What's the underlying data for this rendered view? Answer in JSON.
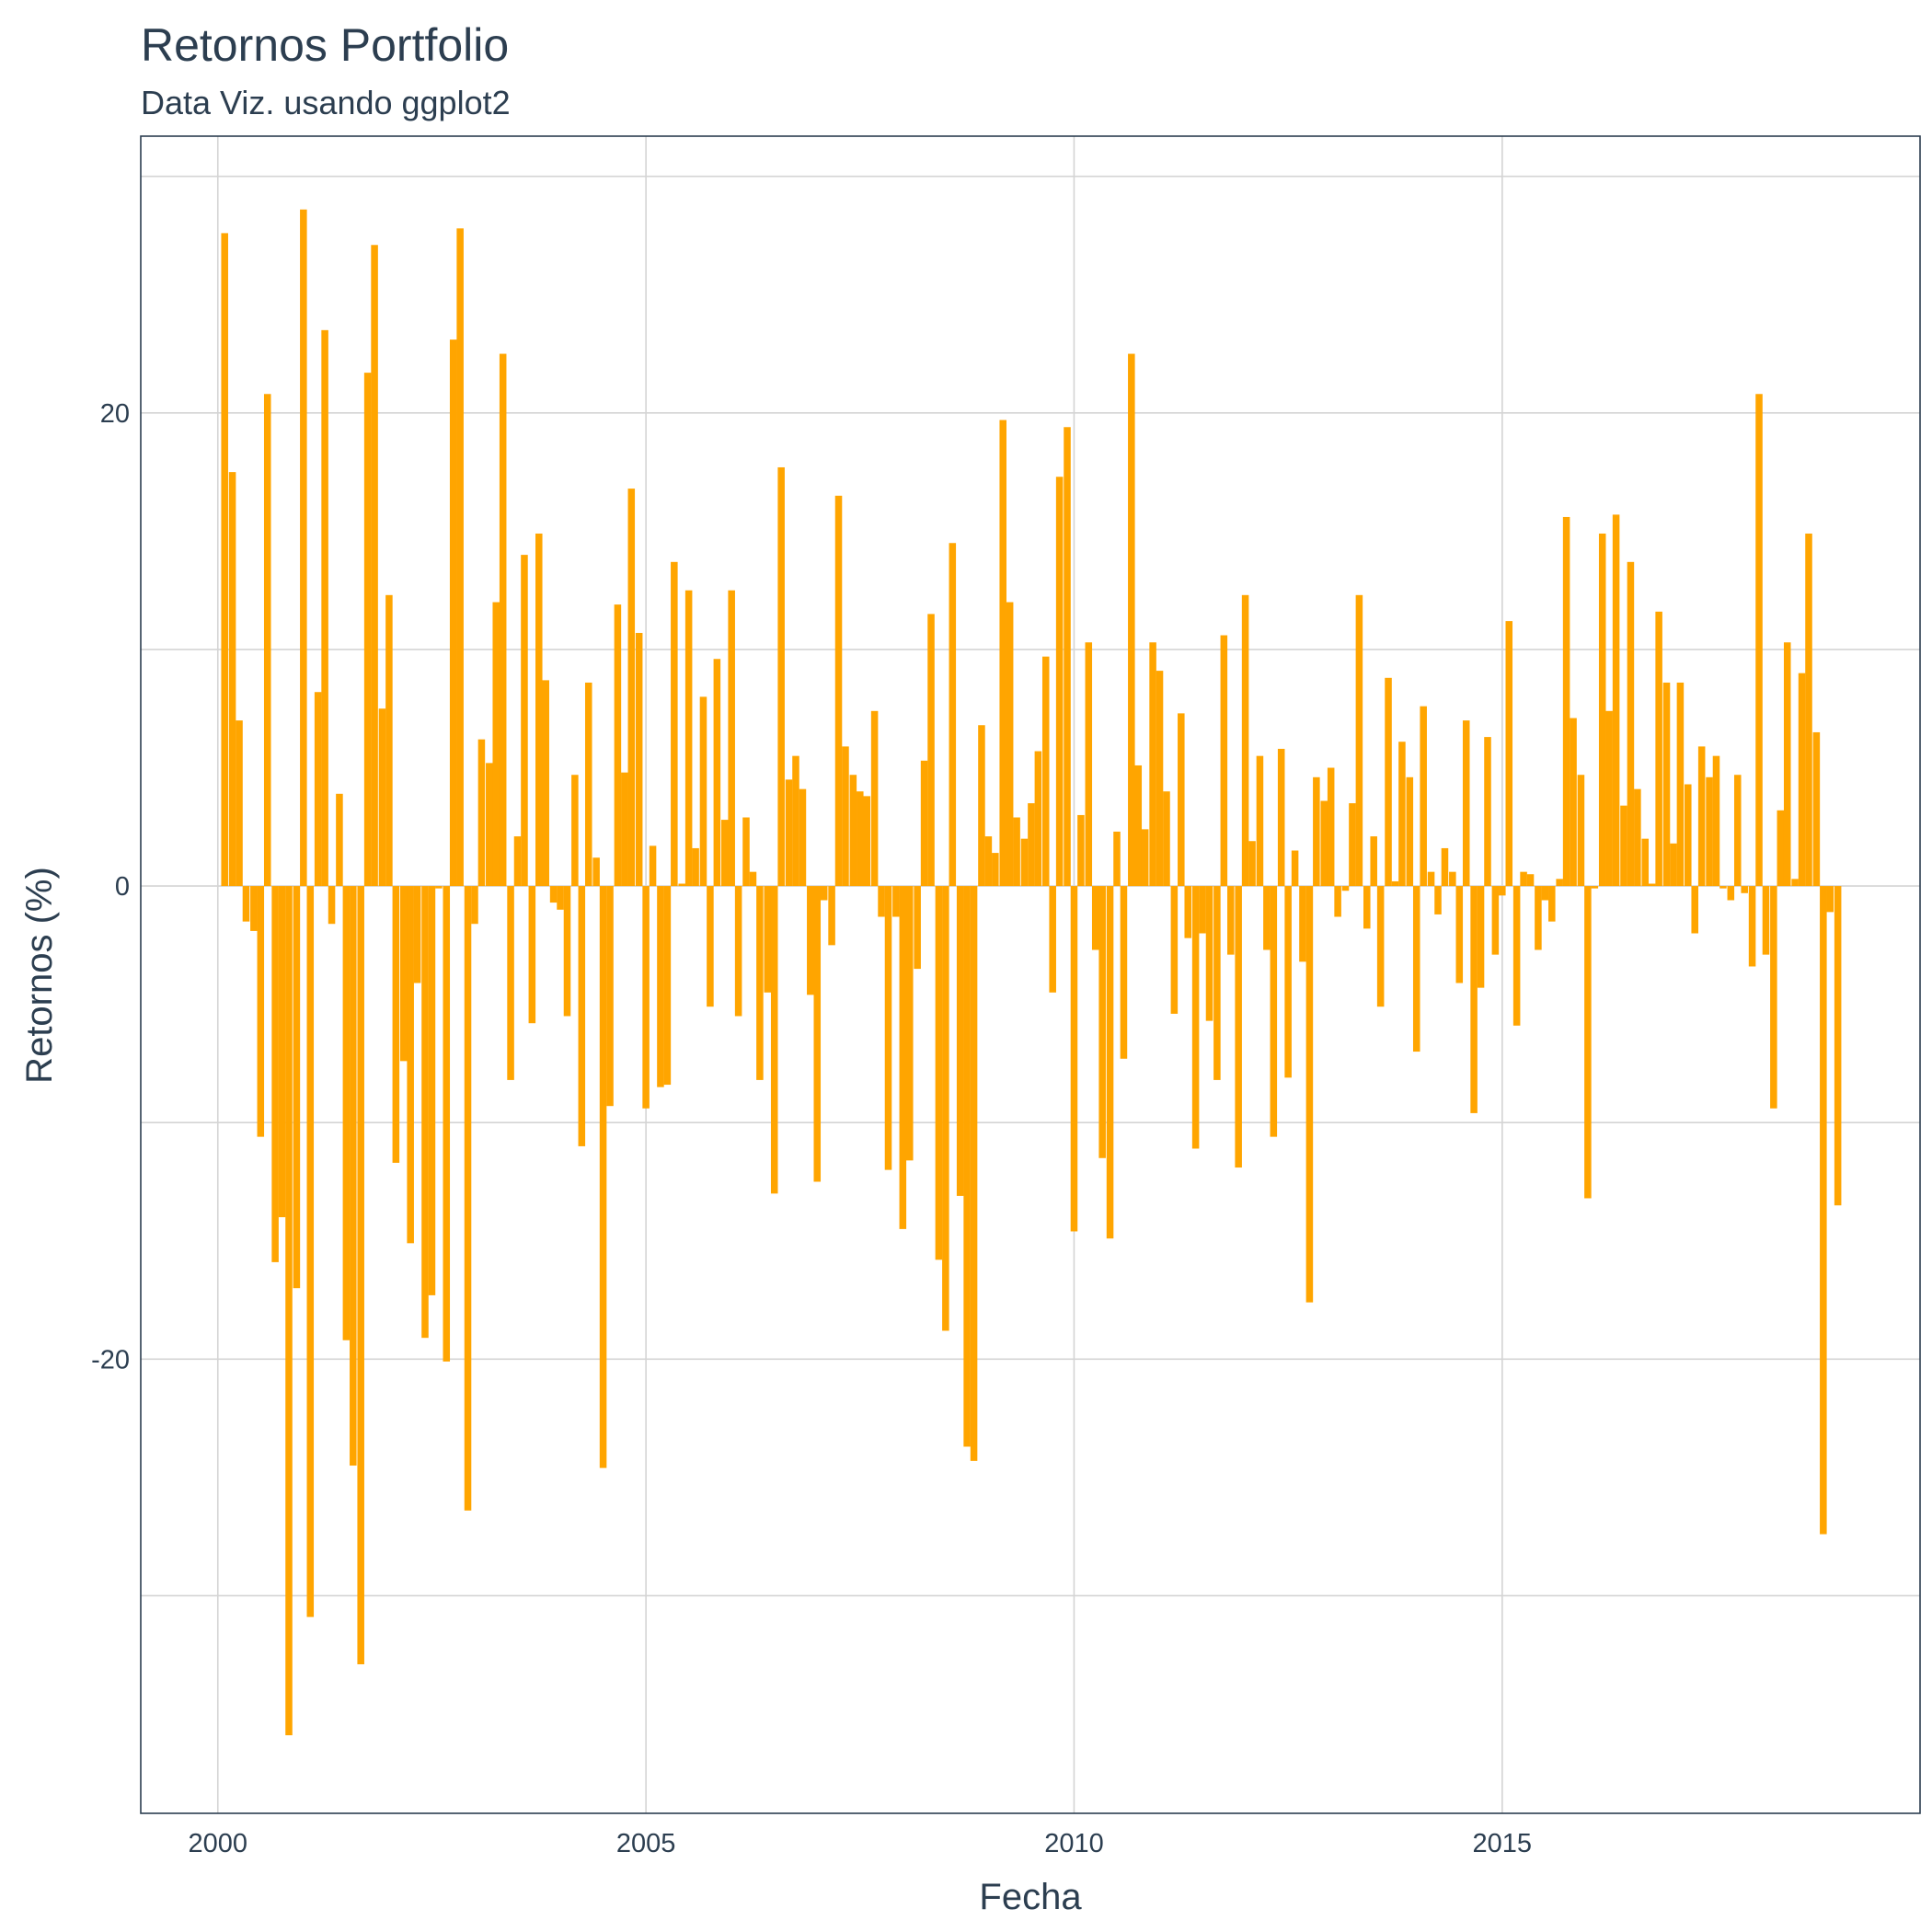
{
  "chart_data": {
    "type": "bar",
    "title": "Retornos Portfolio",
    "subtitle": "Data Viz. usando ggplot2",
    "x_label": "Fecha",
    "y_label": "Retornos (%)",
    "color": "#FFA500",
    "grid": true,
    "xlim": [
      1999.1,
      2019.88
    ],
    "xticks": [
      2000,
      2005,
      2010,
      2015
    ],
    "ylim": [
      -39.2,
      31.7
    ],
    "yticks": [
      -20,
      0,
      20
    ],
    "yminor": [
      -30,
      -10,
      10,
      30
    ],
    "x": [
      2000.08,
      2000.17,
      2000.25,
      2000.33,
      2000.42,
      2000.5,
      2000.58,
      2000.67,
      2000.75,
      2000.83,
      2000.92,
      2001,
      2001.08,
      2001.17,
      2001.25,
      2001.33,
      2001.42,
      2001.5,
      2001.58,
      2001.67,
      2001.75,
      2001.83,
      2001.92,
      2002,
      2002.08,
      2002.17,
      2002.25,
      2002.33,
      2002.42,
      2002.5,
      2002.58,
      2002.67,
      2002.75,
      2002.83,
      2002.92,
      2003,
      2003.08,
      2003.17,
      2003.25,
      2003.33,
      2003.42,
      2003.5,
      2003.58,
      2003.67,
      2003.75,
      2003.83,
      2003.92,
      2004,
      2004.08,
      2004.17,
      2004.25,
      2004.33,
      2004.42,
      2004.5,
      2004.58,
      2004.67,
      2004.75,
      2004.83,
      2004.92,
      2005,
      2005.08,
      2005.17,
      2005.25,
      2005.33,
      2005.42,
      2005.5,
      2005.58,
      2005.67,
      2005.75,
      2005.83,
      2005.92,
      2006,
      2006.08,
      2006.17,
      2006.25,
      2006.33,
      2006.42,
      2006.5,
      2006.58,
      2006.67,
      2006.75,
      2006.83,
      2006.92,
      2007,
      2007.08,
      2007.17,
      2007.25,
      2007.33,
      2007.42,
      2007.5,
      2007.58,
      2007.67,
      2007.75,
      2007.83,
      2007.92,
      2008,
      2008.08,
      2008.17,
      2008.25,
      2008.33,
      2008.42,
      2008.5,
      2008.58,
      2008.67,
      2008.75,
      2008.83,
      2008.92,
      2009,
      2009.08,
      2009.17,
      2009.25,
      2009.33,
      2009.42,
      2009.5,
      2009.58,
      2009.67,
      2009.75,
      2009.83,
      2009.92,
      2010,
      2010.08,
      2010.17,
      2010.25,
      2010.33,
      2010.42,
      2010.5,
      2010.58,
      2010.67,
      2010.75,
      2010.83,
      2010.92,
      2011,
      2011.08,
      2011.17,
      2011.25,
      2011.33,
      2011.42,
      2011.5,
      2011.58,
      2011.67,
      2011.75,
      2011.83,
      2011.92,
      2012,
      2012.08,
      2012.17,
      2012.25,
      2012.33,
      2012.42,
      2012.5,
      2012.58,
      2012.67,
      2012.75,
      2012.83,
      2012.92,
      2013,
      2013.08,
      2013.17,
      2013.25,
      2013.33,
      2013.42,
      2013.5,
      2013.58,
      2013.67,
      2013.75,
      2013.83,
      2013.92,
      2014,
      2014.08,
      2014.17,
      2014.25,
      2014.33,
      2014.42,
      2014.5,
      2014.58,
      2014.67,
      2014.75,
      2014.83,
      2014.92,
      2015,
      2015.08,
      2015.17,
      2015.25,
      2015.33,
      2015.42,
      2015.5,
      2015.58,
      2015.67,
      2015.75,
      2015.83,
      2015.92,
      2016,
      2016.08,
      2016.17,
      2016.25,
      2016.33,
      2016.42,
      2016.5,
      2016.58,
      2016.67,
      2016.75,
      2016.83,
      2016.92,
      2017,
      2017.08,
      2017.17,
      2017.25,
      2017.33,
      2017.42,
      2017.5,
      2017.58,
      2017.67,
      2017.75,
      2017.83,
      2017.92,
      2018,
      2018.08,
      2018.17,
      2018.25,
      2018.33,
      2018.42,
      2018.5,
      2018.58,
      2018.67,
      2018.75,
      2018.83,
      2018.92
    ],
    "values": [
      27.6,
      17.5,
      7.0,
      -1.5,
      -1.9,
      -10.6,
      20.8,
      -15.9,
      -14.0,
      -35.9,
      -17.0,
      28.6,
      -30.9,
      8.2,
      23.5,
      -1.6,
      3.9,
      -19.2,
      -24.5,
      -32.9,
      21.7,
      27.1,
      7.5,
      12.3,
      -11.7,
      -7.4,
      -15.1,
      -4.1,
      -19.1,
      -17.3,
      -0.1,
      -20.1,
      23.1,
      27.8,
      -26.4,
      -1.6,
      6.2,
      5.2,
      12.0,
      22.5,
      -8.2,
      2.1,
      14.0,
      -5.8,
      14.9,
      8.7,
      -0.7,
      -1.0,
      -5.5,
      4.7,
      -11.0,
      8.6,
      1.2,
      -24.6,
      -9.3,
      11.9,
      4.8,
      16.8,
      10.7,
      -9.4,
      1.7,
      -8.5,
      -8.4,
      13.7,
      0.1,
      12.5,
      1.6,
      8.0,
      -5.1,
      9.6,
      2.8,
      12.5,
      -5.5,
      2.9,
      0.6,
      -8.2,
      -4.5,
      -13.0,
      17.7,
      4.5,
      5.5,
      4.1,
      -4.6,
      -12.5,
      -0.6,
      -2.5,
      16.5,
      5.9,
      4.7,
      4.0,
      3.8,
      7.4,
      -1.3,
      -12.0,
      -1.3,
      -14.5,
      -11.6,
      -3.5,
      5.3,
      11.5,
      -15.8,
      -18.8,
      14.5,
      -13.1,
      -23.7,
      -24.3,
      6.8,
      2.1,
      1.4,
      19.7,
      12.0,
      2.9,
      2.0,
      3.5,
      5.7,
      9.7,
      -4.5,
      17.3,
      19.4,
      -14.6,
      3.0,
      10.3,
      -2.7,
      -11.5,
      -14.9,
      2.3,
      -7.3,
      22.5,
      5.1,
      2.4,
      10.3,
      9.1,
      4.0,
      -5.4,
      7.3,
      -2.2,
      -11.1,
      -2.0,
      -5.7,
      -8.2,
      10.6,
      -2.9,
      -11.9,
      12.3,
      1.9,
      5.5,
      -2.7,
      -10.6,
      5.8,
      -8.1,
      1.5,
      -3.2,
      -17.6,
      4.6,
      3.6,
      5.0,
      -1.3,
      -0.2,
      3.5,
      12.3,
      -1.8,
      2.1,
      -5.1,
      8.8,
      0.2,
      6.1,
      4.6,
      -7.0,
      7.6,
      0.6,
      -1.2,
      1.6,
      0.6,
      -4.1,
      7.0,
      -9.6,
      -4.3,
      6.3,
      -2.9,
      -0.4,
      11.2,
      -5.9,
      0.6,
      0.5,
      -2.7,
      -0.6,
      -1.5,
      0.3,
      15.6,
      7.1,
      4.7,
      -13.2,
      -0.1,
      14.9,
      7.4,
      15.7,
      3.4,
      13.7,
      4.1,
      2.0,
      0.1,
      11.6,
      8.6,
      1.8,
      8.6,
      4.3,
      -2.0,
      5.9,
      4.6,
      5.5,
      -0.1,
      -0.6,
      4.7,
      -0.3,
      -3.4,
      20.8,
      -2.9,
      -9.4,
      3.2,
      10.3,
      0.3,
      9.0,
      14.9,
      6.5,
      -27.4,
      -1.1,
      -13.5
    ]
  }
}
